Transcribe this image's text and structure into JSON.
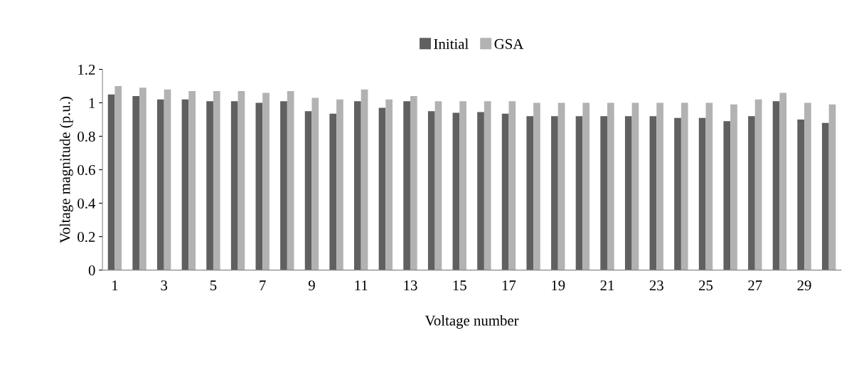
{
  "chart_data": {
    "type": "bar",
    "xlabel": "Voltage number",
    "ylabel": "Voltage magnitude (p.u.)",
    "categories": [
      "1",
      null,
      "3",
      null,
      "5",
      null,
      "7",
      null,
      "9",
      null,
      "11",
      null,
      "13",
      null,
      "15",
      null,
      "17",
      null,
      "19",
      null,
      "21",
      null,
      "23",
      null,
      "25",
      null,
      "27",
      null,
      "29",
      null
    ],
    "series": [
      {
        "name": "Initial",
        "color": "#606060",
        "values": [
          1.05,
          1.04,
          1.02,
          1.02,
          1.01,
          1.01,
          1.0,
          1.01,
          0.95,
          0.935,
          1.01,
          0.97,
          1.01,
          0.95,
          0.94,
          0.945,
          0.935,
          0.92,
          0.92,
          0.92,
          0.92,
          0.92,
          0.92,
          0.91,
          0.91,
          0.89,
          0.92,
          1.01,
          0.9,
          0.88
        ]
      },
      {
        "name": "GSA",
        "color": "#b2b2b2",
        "values": [
          1.1,
          1.09,
          1.08,
          1.07,
          1.07,
          1.07,
          1.06,
          1.07,
          1.03,
          1.02,
          1.08,
          1.02,
          1.04,
          1.01,
          1.01,
          1.01,
          1.01,
          1.0,
          1.0,
          1.0,
          1.0,
          1.0,
          1.0,
          1.0,
          1.0,
          0.99,
          1.02,
          1.06,
          1.0,
          0.99
        ]
      }
    ],
    "ylim": [
      0,
      1.2
    ],
    "yticks": [
      0,
      0.2,
      0.4,
      0.6,
      0.8,
      {
        "value": 1.0,
        "label": "1"
      },
      1.2
    ],
    "grid": false,
    "legend": "top"
  }
}
